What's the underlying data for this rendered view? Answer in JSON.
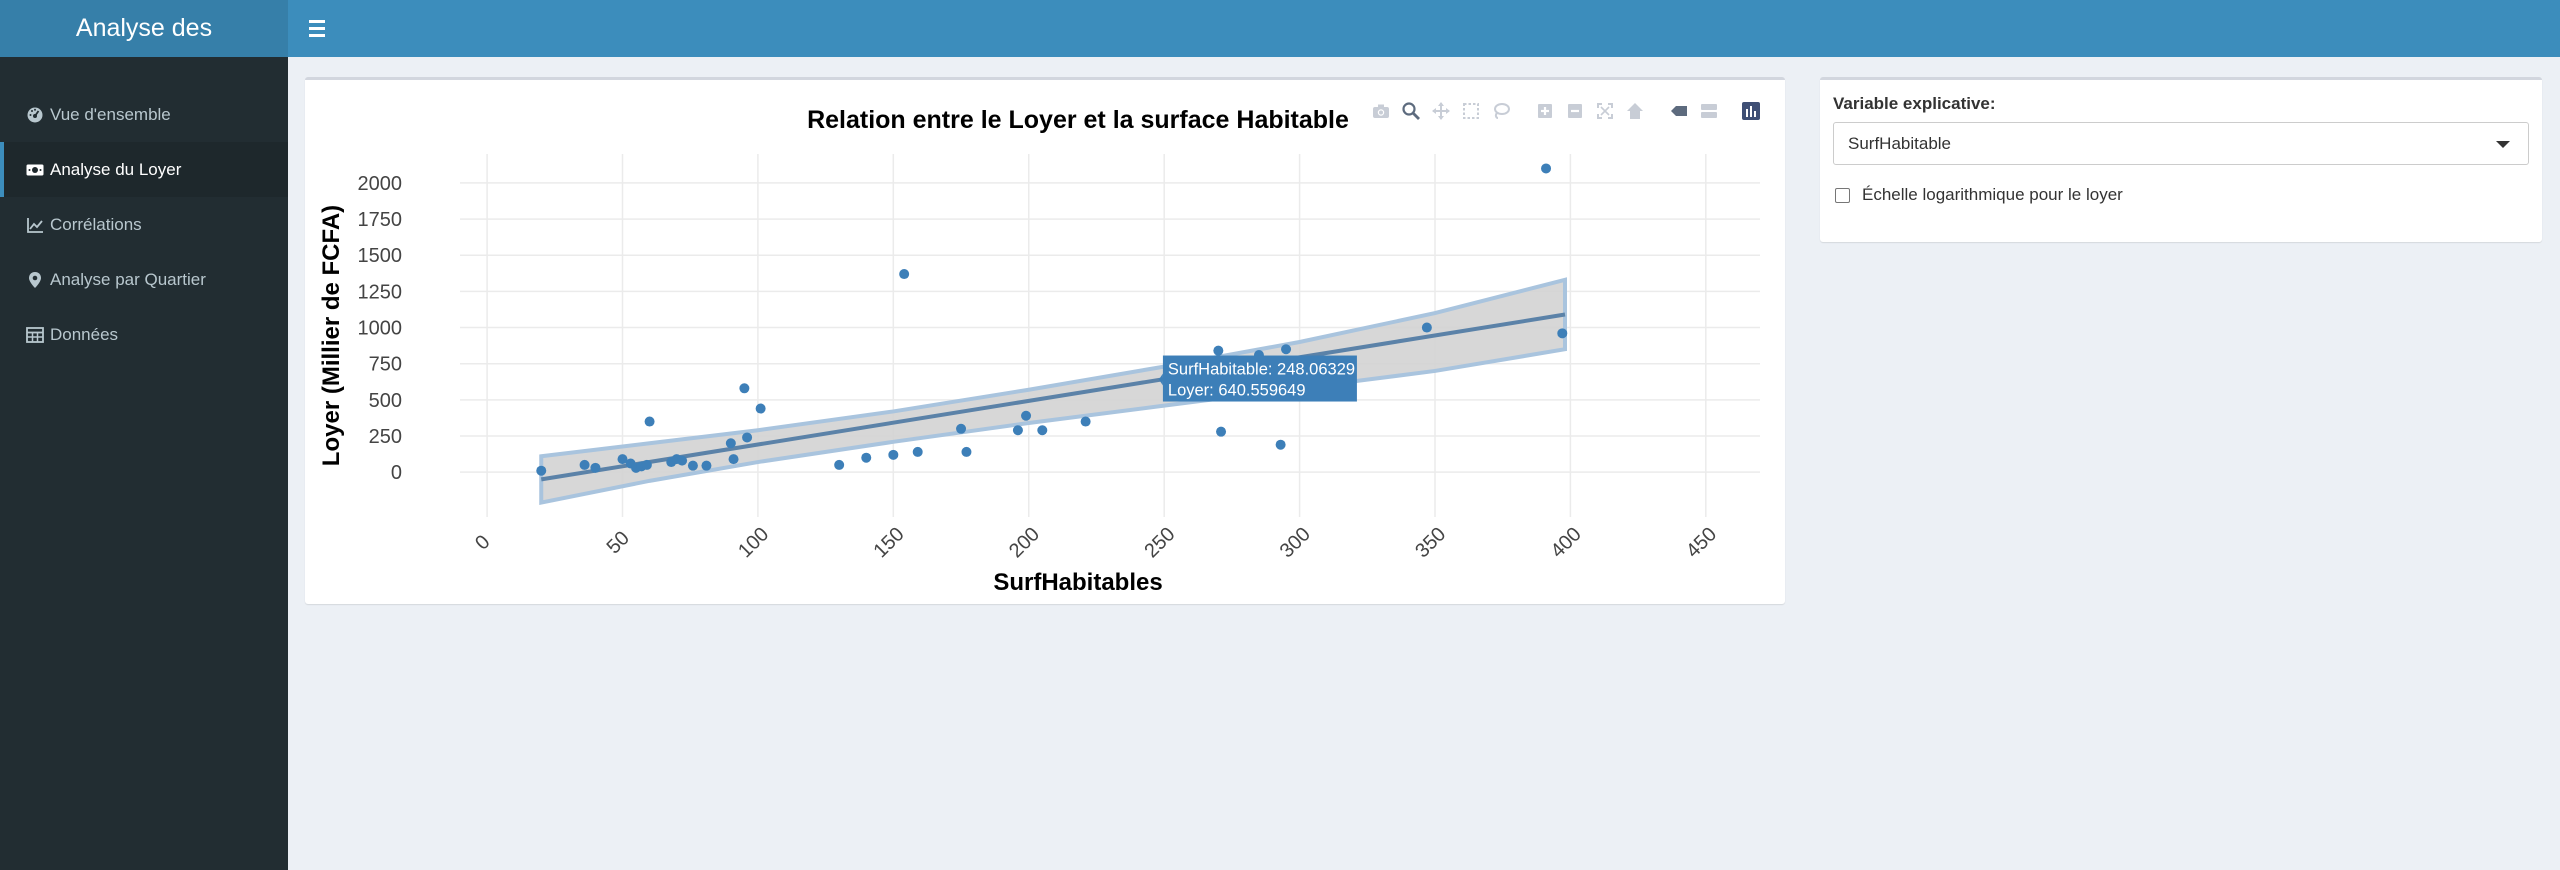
{
  "app": {
    "title": "Analyse des"
  },
  "header": {
    "menu_icon": "hamburger-icon"
  },
  "sidebar": {
    "items": [
      {
        "label": "Vue d'ensemble",
        "icon": "dashboard-icon"
      },
      {
        "label": "Analyse du Loyer",
        "icon": "money-icon",
        "active": true
      },
      {
        "label": "Corrélations",
        "icon": "line-chart-icon"
      },
      {
        "label": "Analyse par Quartier",
        "icon": "map-marker-icon"
      },
      {
        "label": "Données",
        "icon": "table-icon"
      }
    ]
  },
  "controls": {
    "variable_label": "Variable explicative:",
    "variable_value": "SurfHabitable",
    "log_scale_label": "Échelle logarithmique pour le loyer",
    "log_scale_checked": false
  },
  "modebar": {
    "buttons": [
      "camera-icon",
      "zoom-icon",
      "pan-icon",
      "box-select-icon",
      "lasso-icon",
      "zoom-in-icon",
      "zoom-out-icon",
      "autoscale-icon",
      "home-icon",
      "hover-closest-icon",
      "hover-compare-icon",
      "plotly-logo-icon"
    ]
  },
  "chart_data": {
    "type": "scatter",
    "title": "Relation entre le Loyer et la surface Habitable",
    "xlabel": "SurfHabitables",
    "ylabel": "Loyer (Millier de FCFA)",
    "xlim": [
      -10,
      470
    ],
    "ylim": [
      -310,
      2200
    ],
    "x_ticks": [
      0,
      50,
      100,
      150,
      200,
      250,
      300,
      350,
      400,
      450
    ],
    "y_ticks": [
      0,
      250,
      500,
      750,
      1000,
      1250,
      1500,
      1750,
      2000
    ],
    "grid": true,
    "point_color": "#3d7fb8",
    "line_color": "#5b82a8",
    "band_fill": "#d3d3d3",
    "band_stroke": "#a9c4de",
    "points": [
      {
        "x": 20,
        "y": 10
      },
      {
        "x": 36,
        "y": 50
      },
      {
        "x": 40,
        "y": 30
      },
      {
        "x": 50,
        "y": 90
      },
      {
        "x": 53,
        "y": 60
      },
      {
        "x": 55,
        "y": 30
      },
      {
        "x": 57,
        "y": 40
      },
      {
        "x": 59,
        "y": 50
      },
      {
        "x": 60,
        "y": 350
      },
      {
        "x": 68,
        "y": 70
      },
      {
        "x": 70,
        "y": 90
      },
      {
        "x": 72,
        "y": 80
      },
      {
        "x": 76,
        "y": 45
      },
      {
        "x": 81,
        "y": 45
      },
      {
        "x": 90,
        "y": 200
      },
      {
        "x": 91,
        "y": 90
      },
      {
        "x": 95,
        "y": 580
      },
      {
        "x": 96,
        "y": 240
      },
      {
        "x": 101,
        "y": 440
      },
      {
        "x": 130,
        "y": 50
      },
      {
        "x": 140,
        "y": 100
      },
      {
        "x": 150,
        "y": 120
      },
      {
        "x": 154,
        "y": 1370
      },
      {
        "x": 159,
        "y": 140
      },
      {
        "x": 175,
        "y": 300
      },
      {
        "x": 177,
        "y": 140
      },
      {
        "x": 196,
        "y": 290
      },
      {
        "x": 199,
        "y": 390
      },
      {
        "x": 205,
        "y": 290
      },
      {
        "x": 221,
        "y": 350
      },
      {
        "x": 270,
        "y": 840
      },
      {
        "x": 271,
        "y": 280
      },
      {
        "x": 285,
        "y": 810
      },
      {
        "x": 293,
        "y": 190
      },
      {
        "x": 295,
        "y": 850
      },
      {
        "x": 347,
        "y": 1000
      },
      {
        "x": 391,
        "y": 2100
      },
      {
        "x": 397,
        "y": 960
      }
    ],
    "regression": {
      "x": [
        20,
        398
      ],
      "fit": [
        -50,
        1090
      ],
      "band_x": [
        20,
        60,
        100,
        150,
        200,
        250,
        300,
        350,
        398
      ],
      "band_lower": [
        -210,
        -60,
        70,
        210,
        340,
        460,
        580,
        700,
        850
      ],
      "band_upper": [
        110,
        200,
        290,
        420,
        570,
        730,
        900,
        1100,
        1330
      ]
    },
    "tooltip": {
      "x": 248.06329,
      "y": 640.559649,
      "text": [
        "SurfHabitable: 248.06329",
        "Loyer:  640.559649"
      ]
    }
  }
}
